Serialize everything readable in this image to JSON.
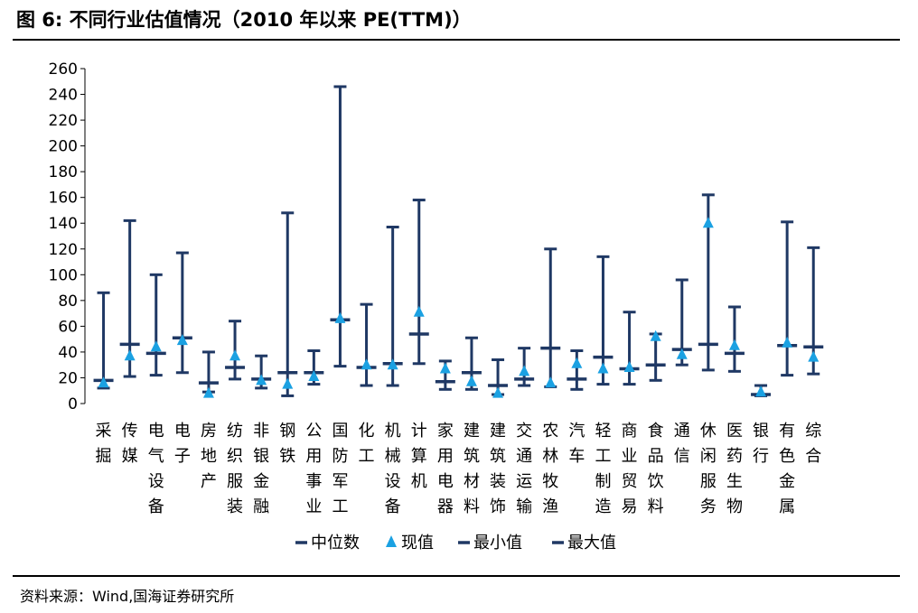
{
  "title": "图 6:  不同行业估值情况（2010 年以来 PE(TTM)）",
  "source": "资料来源：Wind,国海证券研究所",
  "colors": {
    "bar": "#1f3864",
    "marker": "#1ba1e2"
  },
  "chart_data": {
    "type": "range",
    "ylim": [
      0,
      260
    ],
    "yticks": [
      0,
      20,
      40,
      60,
      80,
      100,
      120,
      140,
      160,
      180,
      200,
      220,
      240,
      260
    ],
    "legend": [
      "中位数",
      "现值",
      "最小值",
      "最大值"
    ],
    "legend_position": "bottom",
    "grid": false,
    "categories": [
      "采掘",
      "传媒",
      "电气设备",
      "电子",
      "房地产",
      "纺织服装",
      "非银金融",
      "钢铁",
      "公用事业",
      "国防军工",
      "化工",
      "机械设备",
      "计算机",
      "家用电器",
      "建筑材料",
      "建筑装饰",
      "交通运输",
      "农林牧渔",
      "汽车",
      "轻工制造",
      "商业贸易",
      "食品饮料",
      "通信",
      "休闲服务",
      "医药生物",
      "银行",
      "有色金属",
      "综合"
    ],
    "series": [
      {
        "name": "中位数",
        "values": [
          18,
          46,
          39,
          51,
          16,
          28,
          19,
          24,
          24,
          65,
          28,
          31,
          54,
          17,
          24,
          14,
          19,
          43,
          19,
          36,
          27,
          30,
          42,
          46,
          39,
          7,
          45,
          44
        ]
      },
      {
        "name": "现值",
        "values": [
          16,
          37,
          44,
          49,
          8,
          37,
          18,
          15,
          21,
          66,
          30,
          30,
          71,
          27,
          17,
          8,
          25,
          16,
          31,
          27,
          28,
          52,
          38,
          140,
          45,
          9,
          47,
          36
        ]
      },
      {
        "name": "最小值",
        "values": [
          12,
          21,
          22,
          24,
          9,
          19,
          12,
          6,
          15,
          29,
          14,
          14,
          31,
          11,
          11,
          7,
          14,
          13,
          11,
          15,
          15,
          18,
          30,
          26,
          25,
          6,
          22,
          23
        ]
      },
      {
        "name": "最大值",
        "values": [
          86,
          142,
          100,
          117,
          40,
          64,
          37,
          148,
          41,
          246,
          77,
          137,
          158,
          33,
          51,
          34,
          43,
          120,
          41,
          114,
          71,
          54,
          96,
          162,
          75,
          14,
          141,
          121
        ]
      }
    ]
  }
}
